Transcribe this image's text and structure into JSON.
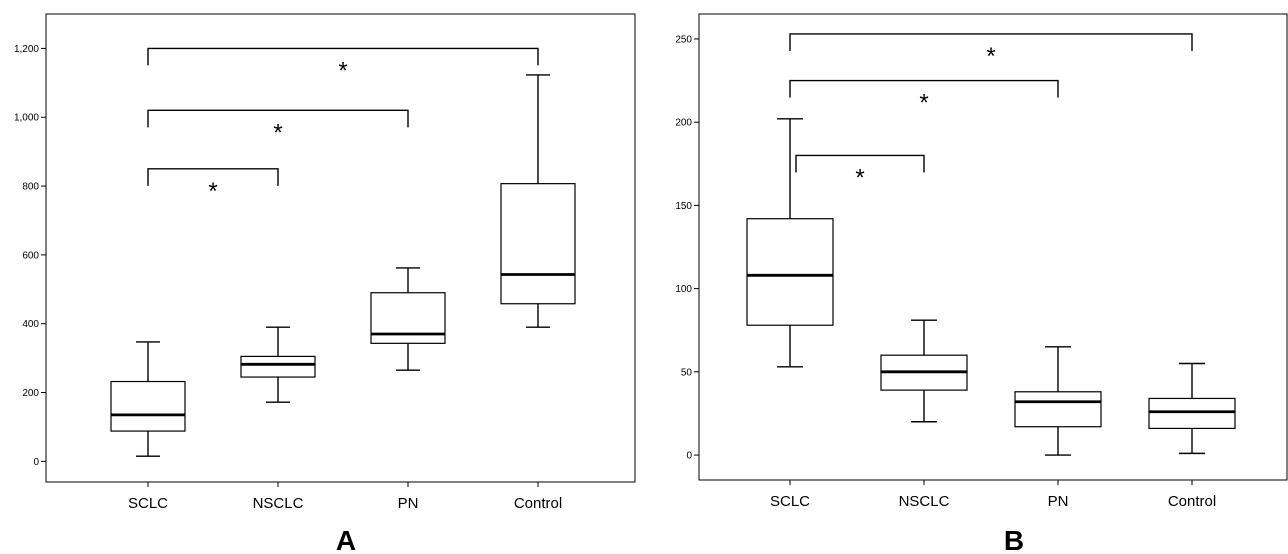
{
  "chart_data": [
    {
      "type": "box",
      "panel_label": "A",
      "categories": [
        "SCLC",
        "NSCLC",
        "PN",
        "Control"
      ],
      "ylim": [
        -60,
        1300
      ],
      "yticks": [
        0,
        200,
        400,
        600,
        800,
        1000,
        1200
      ],
      "ytick_labels": [
        "0",
        "200",
        "400",
        "600",
        "800",
        "1,000",
        "1,200"
      ],
      "boxes": [
        {
          "min": 15,
          "q1": 88,
          "median": 135,
          "q3": 232,
          "max": 347
        },
        {
          "min": 172,
          "q1": 245,
          "median": 282,
          "q3": 305,
          "max": 390
        },
        {
          "min": 265,
          "q1": 343,
          "median": 370,
          "q3": 490,
          "max": 562
        },
        {
          "min": 390,
          "q1": 458,
          "median": 543,
          "q3": 807,
          "max": 1123
        }
      ],
      "significance": [
        {
          "from": 0,
          "to": 1,
          "y": 850,
          "label": "*"
        },
        {
          "from": 0,
          "to": 2,
          "y": 1020,
          "label": "*"
        },
        {
          "from": 0,
          "to": 3,
          "y": 1200,
          "label": "*"
        }
      ]
    },
    {
      "type": "box",
      "panel_label": "B",
      "categories": [
        "SCLC",
        "NSCLC",
        "PN",
        "Control"
      ],
      "ylim": [
        -15,
        265
      ],
      "yticks": [
        0,
        50,
        100,
        150,
        200,
        250
      ],
      "ytick_labels": [
        "0",
        "50",
        "100",
        "150",
        "200",
        "250"
      ],
      "boxes": [
        {
          "min": 53,
          "q1": 78,
          "median": 108,
          "q3": 142,
          "max": 202
        },
        {
          "min": 20,
          "q1": 39,
          "median": 50,
          "q3": 60,
          "max": 81
        },
        {
          "min": 0,
          "q1": 17,
          "median": 32,
          "q3": 38,
          "max": 65
        },
        {
          "min": 1,
          "q1": 16,
          "median": 26,
          "q3": 34,
          "max": 55
        }
      ],
      "significance": [
        {
          "from": 0,
          "to": 1,
          "y": 180,
          "label": "*"
        },
        {
          "from": 0,
          "to": 2,
          "y": 225,
          "label": "*"
        },
        {
          "from": 0,
          "to": 3,
          "y": 253,
          "label": "*"
        }
      ]
    }
  ]
}
